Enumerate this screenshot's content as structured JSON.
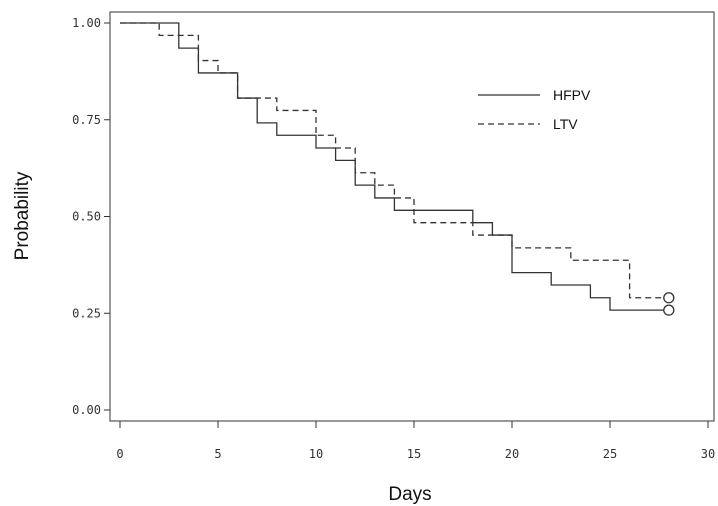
{
  "chart_data": {
    "type": "line",
    "subtype": "kaplan-meier step curves",
    "xlabel": "Days",
    "ylabel": "Probability",
    "xlim": [
      0,
      30
    ],
    "ylim": [
      0.0,
      1.0
    ],
    "x_ticks": [
      "0",
      "5",
      "10",
      "15",
      "20",
      "25",
      "30"
    ],
    "y_ticks": [
      "0.00",
      "0.25",
      "0.50",
      "0.75",
      "1.00"
    ],
    "grid": false,
    "legend_position": "top-right",
    "series": [
      {
        "name": "HFPV",
        "line_style": "solid",
        "color": "#333333",
        "censored_marker": "circle",
        "x": [
          0,
          3,
          4,
          6,
          7,
          8,
          10,
          11,
          12,
          13,
          14,
          18,
          19,
          20,
          22,
          24,
          25,
          28
        ],
        "y": [
          1.0,
          0.935,
          0.871,
          0.806,
          0.742,
          0.71,
          0.677,
          0.645,
          0.581,
          0.548,
          0.516,
          0.484,
          0.452,
          0.355,
          0.323,
          0.29,
          0.258,
          0.258
        ]
      },
      {
        "name": "LTV",
        "line_style": "dashed",
        "color": "#333333",
        "censored_marker": "circle",
        "x": [
          0,
          2,
          4,
          5,
          6,
          8,
          10,
          11,
          12,
          13,
          14,
          15,
          18,
          19,
          20,
          23,
          26,
          28
        ],
        "y": [
          1.0,
          0.968,
          0.903,
          0.871,
          0.806,
          0.774,
          0.71,
          0.677,
          0.613,
          0.581,
          0.548,
          0.484,
          0.452,
          0.452,
          0.419,
          0.387,
          0.29,
          0.29
        ]
      }
    ]
  }
}
